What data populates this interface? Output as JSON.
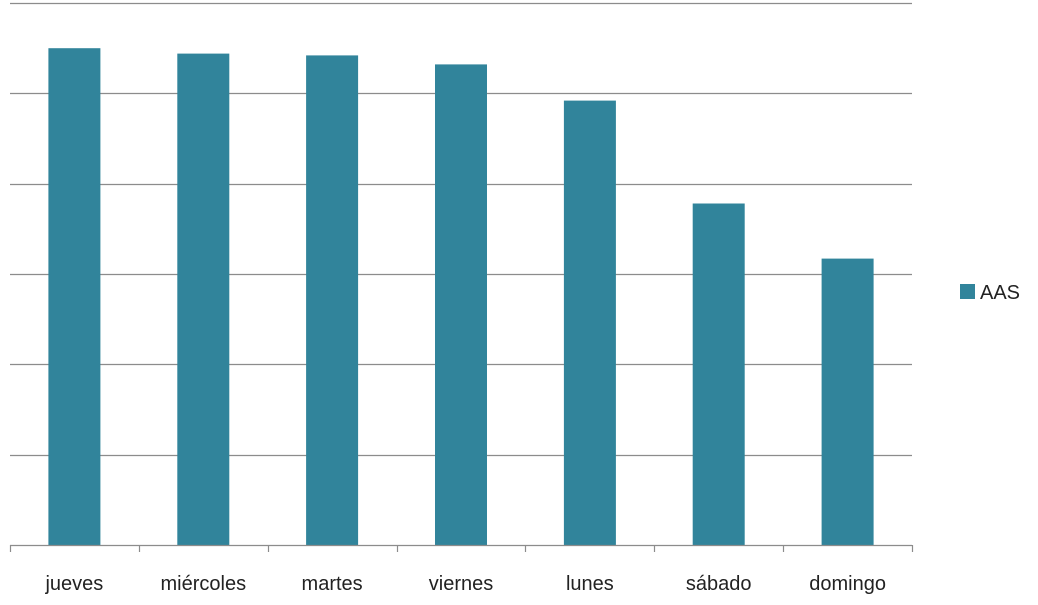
{
  "chart_data": {
    "type": "bar",
    "title": "",
    "xlabel": "",
    "ylabel": "",
    "categories": [
      "jueves",
      "miércoles",
      "martes",
      "viernes",
      "lunes",
      "sábado",
      "domingo"
    ],
    "series": [
      {
        "name": "AAS",
        "color": "#31849B",
        "values": [
          5.5,
          5.44,
          5.42,
          5.32,
          4.92,
          3.78,
          3.17
        ]
      }
    ],
    "ylim": [
      0,
      6
    ],
    "y_gridlines": [
      0,
      1,
      2,
      3,
      4,
      5,
      6
    ],
    "y_tick_labels_shown": false,
    "grid": true,
    "legend": {
      "position": "right",
      "entries": [
        "AAS"
      ]
    },
    "colors": {
      "bar": "#31849B",
      "grid": "#8c8c8c",
      "axis": "#8c8c8c",
      "text": "#222222"
    }
  }
}
